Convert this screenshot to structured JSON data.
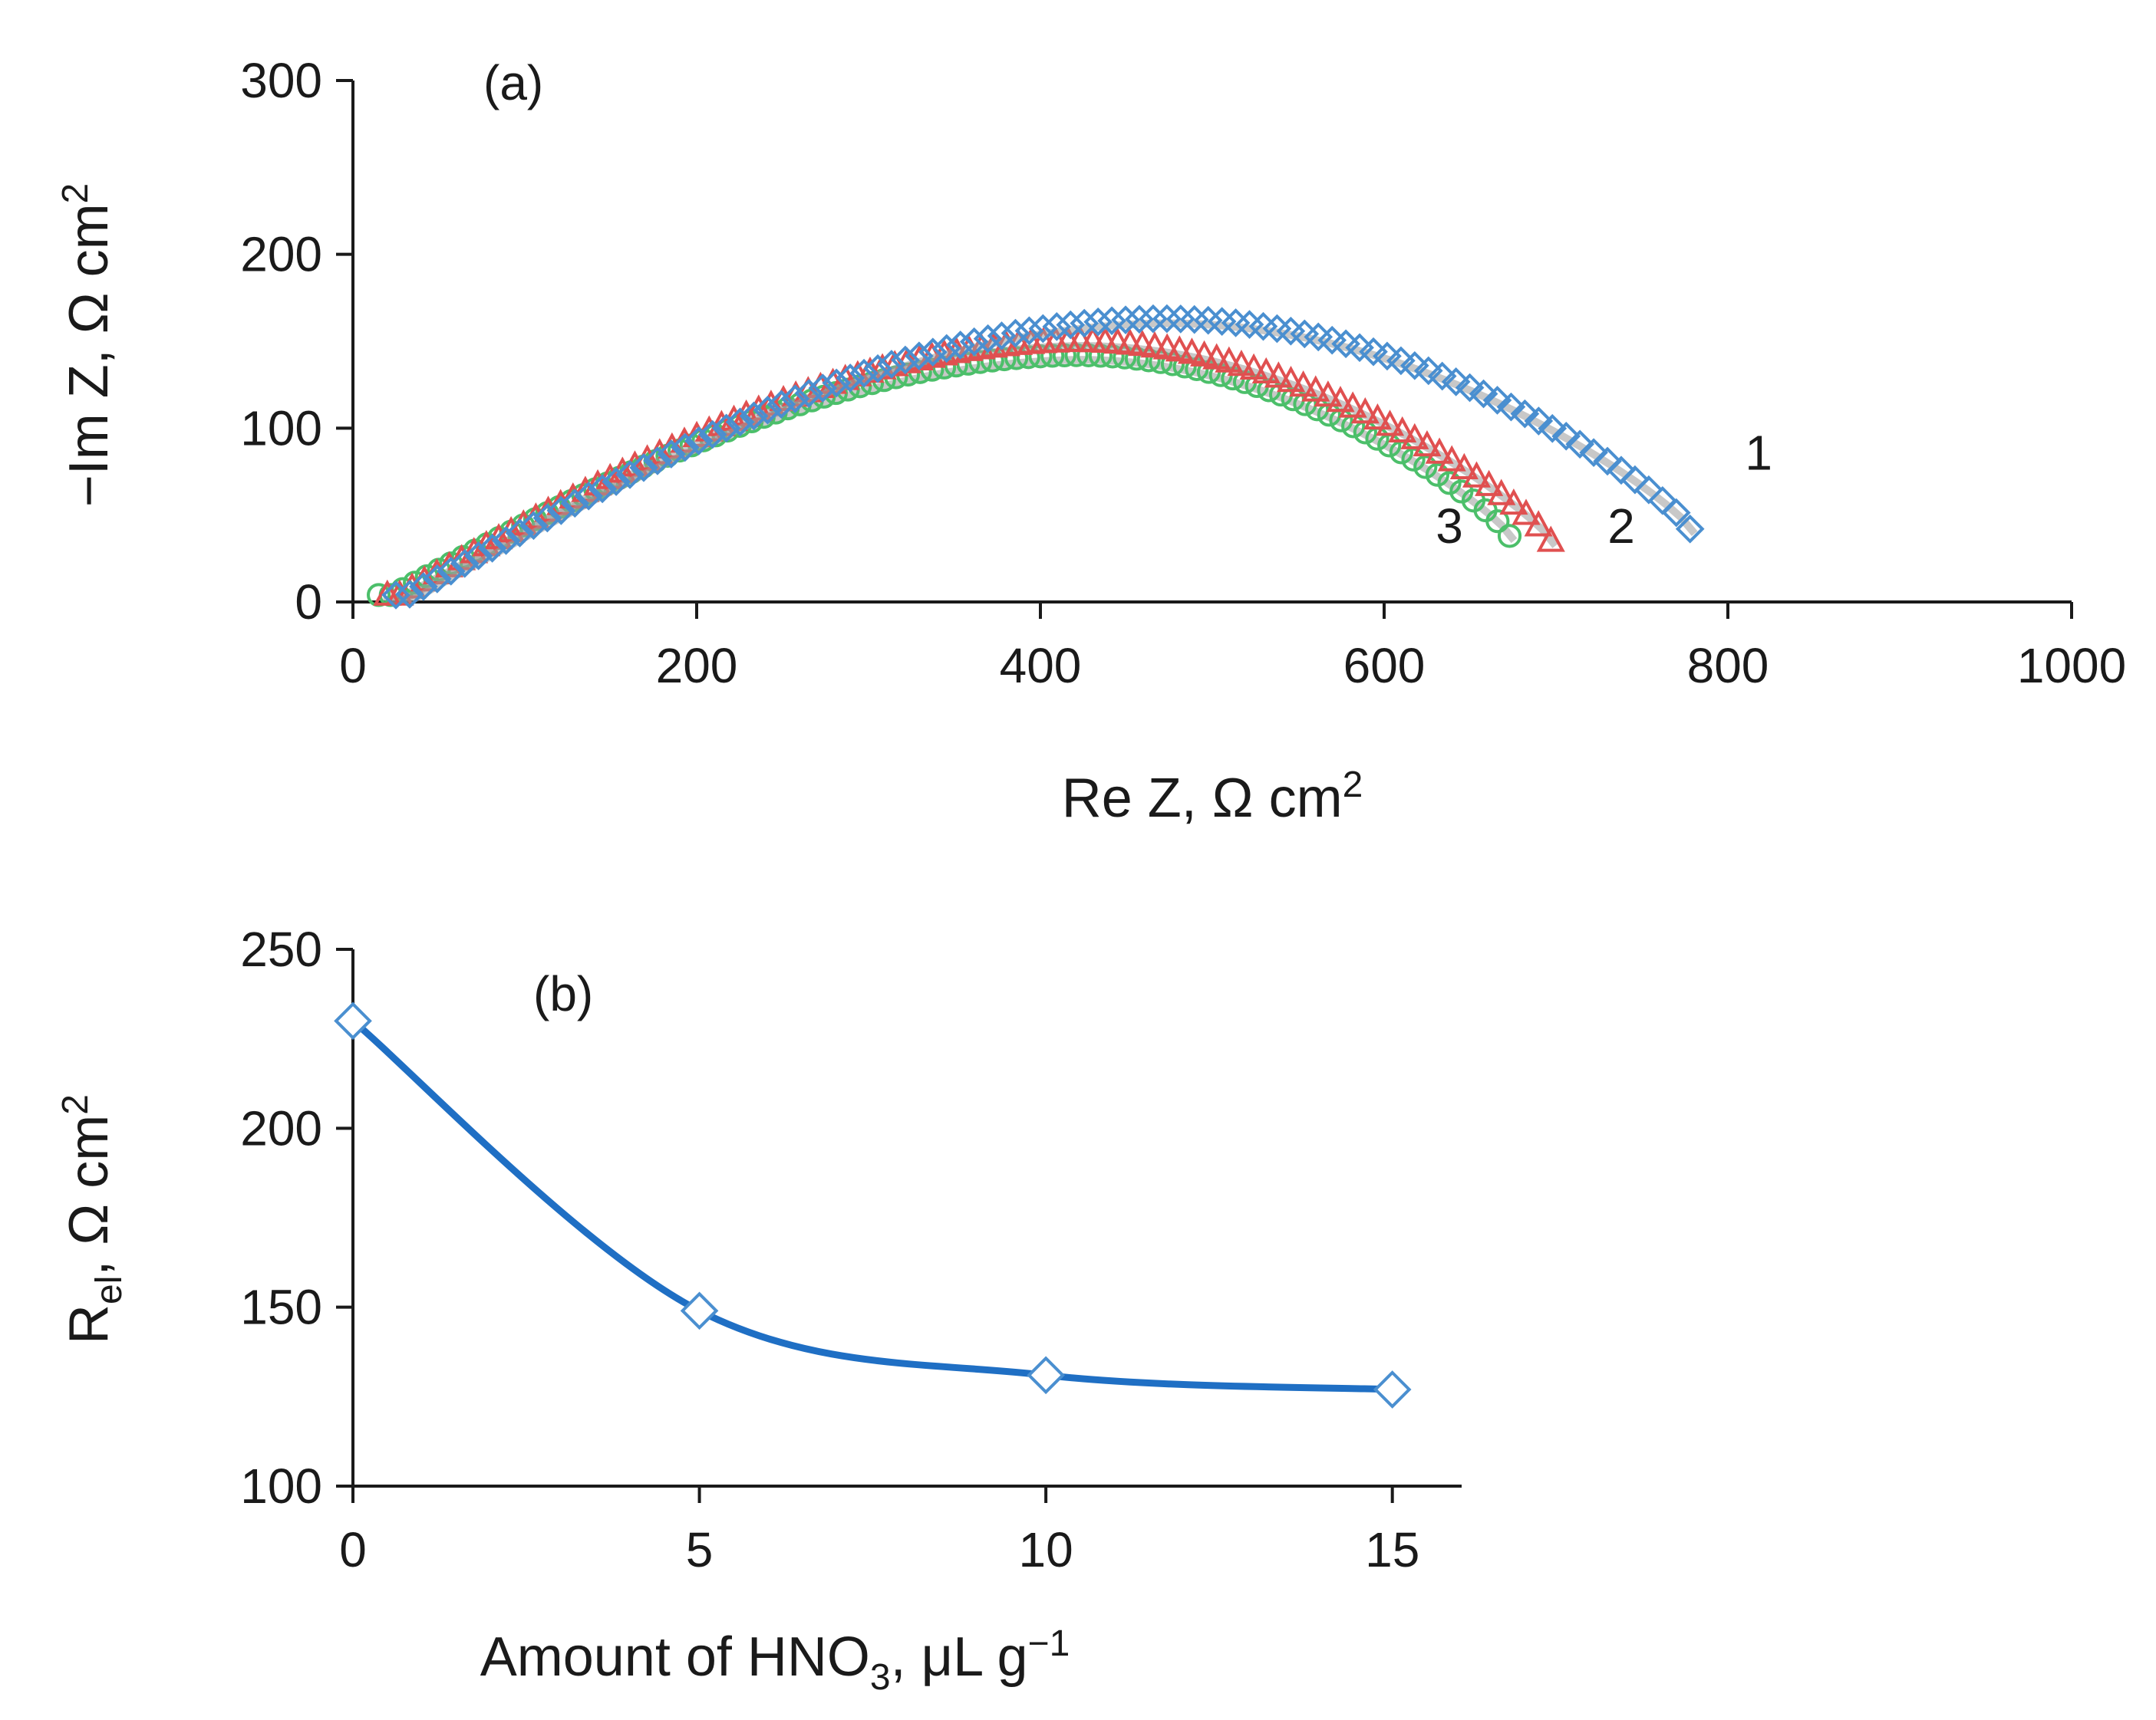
{
  "chart_data": [
    {
      "id": "a",
      "type": "scatter",
      "panel_label": "(a)",
      "xlabel": "Re Z, Ω cm",
      "xlabel_sup": "2",
      "ylabel": "−Im Z, Ω cm",
      "ylabel_sup": "2",
      "xlim": [
        0,
        1000
      ],
      "ylim": [
        0,
        300
      ],
      "xticks": [
        "0",
        "200",
        "400",
        "600",
        "800",
        "1000"
      ],
      "yticks": [
        "0",
        "100",
        "200",
        "300"
      ],
      "series": [
        {
          "name": "1",
          "label": "1",
          "marker": "diamond",
          "color": "#4a8fd0",
          "x_start": 25,
          "x_end": 778,
          "peak_x": 470,
          "peak_y": 163,
          "end_y": 42,
          "count": 95
        },
        {
          "name": "2",
          "label": "2",
          "marker": "triangle",
          "color": "#e05050",
          "x_start": 20,
          "x_end": 697,
          "peak_x": 420,
          "peak_y": 150,
          "end_y": 35,
          "count": 95
        },
        {
          "name": "3",
          "label": "3",
          "marker": "circle",
          "color": "#4cbf6a",
          "x_start": 15,
          "x_end": 673,
          "peak_x": 420,
          "peak_y": 142,
          "end_y": 38,
          "count": 95
        }
      ],
      "label_positions": {
        "1": {
          "x": 810,
          "y": 76
        },
        "2": {
          "x": 730,
          "y": 34
        },
        "3": {
          "x": 630,
          "y": 34
        }
      }
    },
    {
      "id": "b",
      "type": "line",
      "panel_label": "(b)",
      "xlabel": "Amount of HNO",
      "xlabel_sub": "3",
      "xlabel_tail": ", μL g",
      "xlabel_sup": "−1",
      "ylabel": "R",
      "ylabel_sub": "el",
      "ylabel_tail": ", Ω cm",
      "ylabel_sup": "2",
      "xlim": [
        0,
        16
      ],
      "ylim": [
        100,
        250
      ],
      "xticks": [
        "0",
        "5",
        "10",
        "15"
      ],
      "yticks": [
        "100",
        "150",
        "200",
        "250"
      ],
      "series": [
        {
          "name": "R_el",
          "marker": "diamond",
          "color": "#4a8fd0",
          "line_color": "#1f6fc4",
          "x": [
            0,
            5,
            10,
            15
          ],
          "values": [
            230,
            149,
            131,
            127
          ]
        }
      ]
    }
  ]
}
